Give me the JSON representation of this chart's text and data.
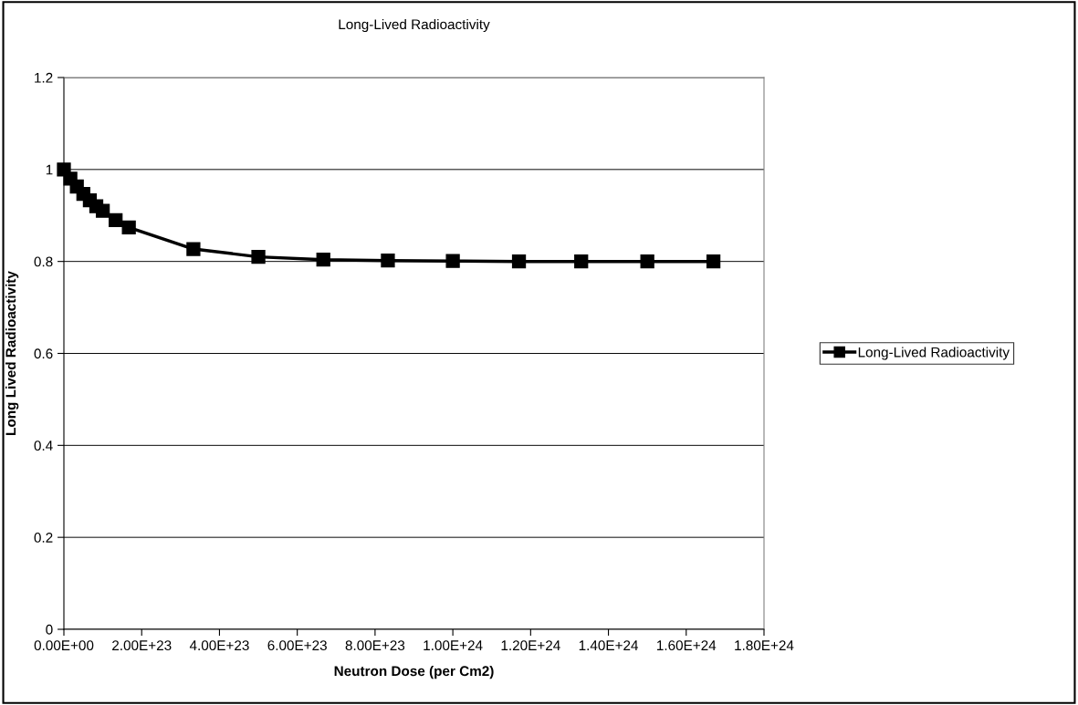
{
  "chart_data": {
    "type": "line",
    "title": "Long-Lived Radioactivity",
    "xlabel": "Neutron Dose (per Cm2)",
    "ylabel": "Long Lived Radioactivity",
    "x": [
      0,
      1.67e+22,
      3.33e+22,
      5e+22,
      6.67e+22,
      8.33e+22,
      1e+23,
      1.33e+23,
      1.67e+23,
      3.33e+23,
      5e+23,
      6.67e+23,
      8.33e+23,
      1e+24,
      1.17e+24,
      1.33e+24,
      1.5e+24,
      1.67e+24
    ],
    "series": [
      {
        "name": "Long-Lived Radioactivity",
        "color": "#000000",
        "values": [
          1.0,
          0.98,
          0.963,
          0.947,
          0.933,
          0.92,
          0.91,
          0.89,
          0.874,
          0.827,
          0.81,
          0.804,
          0.802,
          0.801,
          0.8,
          0.8,
          0.8,
          0.8
        ]
      }
    ],
    "xlim": [
      0,
      1.8e+24
    ],
    "xticks": [
      {
        "value": 0,
        "label": "0.00E+00"
      },
      {
        "value": 2e+23,
        "label": "2.00E+23"
      },
      {
        "value": 4e+23,
        "label": "4.00E+23"
      },
      {
        "value": 6e+23,
        "label": "6.00E+23"
      },
      {
        "value": 8e+23,
        "label": "8.00E+23"
      },
      {
        "value": 1e+24,
        "label": "1.00E+24"
      },
      {
        "value": 1.2e+24,
        "label": "1.20E+24"
      },
      {
        "value": 1.4e+24,
        "label": "1.40E+24"
      },
      {
        "value": 1.6e+24,
        "label": "1.60E+24"
      },
      {
        "value": 1.8e+24,
        "label": "1.80E+24"
      }
    ],
    "ylim": [
      0,
      1.2
    ],
    "yticks": [
      0,
      0.2,
      0.4,
      0.6,
      0.8,
      1,
      1.2
    ],
    "grid": "y",
    "legend": "right",
    "marker": "square",
    "line_style": "solid"
  }
}
